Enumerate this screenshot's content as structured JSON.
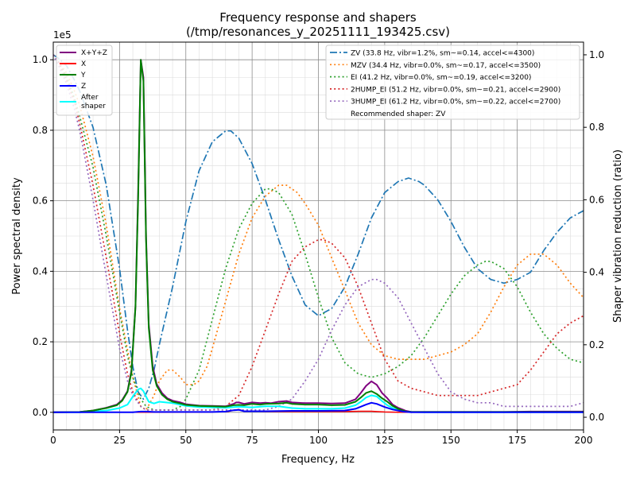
{
  "chart_data": {
    "type": "line",
    "title": "Frequency response and shapers",
    "subtitle": "(/tmp/resonances_y_20251111_193425.csv)",
    "xlabel": "Frequency, Hz",
    "ylabel": "Power spectral density",
    "y2label": "Shaper vibration reduction (ratio)",
    "y_multiplier": "1e5",
    "xlim": [
      0,
      200
    ],
    "ylim": [
      -0.05,
      1.05
    ],
    "y2lim": [
      -0.035,
      1.035
    ],
    "grid": true,
    "xticks": [
      0,
      25,
      50,
      75,
      100,
      125,
      150,
      175,
      200
    ],
    "yticks": [
      0.0,
      0.2,
      0.4,
      0.6,
      0.8,
      1.0
    ],
    "y2ticks": [
      0.0,
      0.2,
      0.4,
      0.6,
      0.8,
      1.0
    ],
    "xtick_labels": [
      "0",
      "25",
      "50",
      "75",
      "100",
      "125",
      "150",
      "175",
      "200"
    ],
    "ytick_labels": [
      "0.0",
      "0.2",
      "0.4",
      "0.6",
      "0.8",
      "1.0"
    ],
    "y2tick_labels": [
      "0.0",
      "0.2",
      "0.4",
      "0.6",
      "0.8",
      "1.0"
    ],
    "left_legend": {
      "placement": "top-left",
      "entries": [
        {
          "label": "X+Y+Z",
          "color": "#800080",
          "style": "solid"
        },
        {
          "label": "X",
          "color": "#ff0000",
          "style": "solid"
        },
        {
          "label": "Y",
          "color": "#008000",
          "style": "solid"
        },
        {
          "label": "Z",
          "color": "#0000ff",
          "style": "solid"
        },
        {
          "label": "After\nshaper",
          "color": "#00ffff",
          "style": "solid"
        }
      ]
    },
    "right_legend": {
      "placement": "top-right",
      "entries": [
        {
          "label": "ZV (33.8 Hz, vibr=1.2%, sm~=0.14, accel<=4300)",
          "color": "#1f77b4",
          "style": "dashdot"
        },
        {
          "label": "MZV (34.4 Hz, vibr=0.0%, sm~=0.17, accel<=3500)",
          "color": "#ff7f0e",
          "style": "dotted"
        },
        {
          "label": "EI (41.2 Hz, vibr=0.0%, sm~=0.19, accel<=3200)",
          "color": "#2ca02c",
          "style": "dotted"
        },
        {
          "label": "2HUMP_EI (51.2 Hz, vibr=0.0%, sm~=0.21, accel<=2900)",
          "color": "#d62728",
          "style": "dotted"
        },
        {
          "label": "3HUMP_EI (61.2 Hz, vibr=0.0%, sm~=0.22, accel<=2700)",
          "color": "#9467bd",
          "style": "dotted"
        }
      ],
      "note": "Recommended shaper: ZV"
    },
    "psd_series": [
      {
        "name": "X+Y+Z",
        "color": "#800080",
        "width": 2,
        "x": [
          0,
          10,
          15,
          20,
          24,
          26,
          28,
          29.5,
          31,
          32,
          33,
          34,
          35,
          36,
          37.5,
          39,
          41,
          43,
          45,
          48,
          50,
          55,
          60,
          65,
          68,
          69,
          70,
          72,
          75,
          78,
          80,
          82,
          85,
          88,
          90,
          95,
          100,
          105,
          110,
          114,
          116,
          118,
          120,
          122,
          124,
          126,
          128,
          130,
          133,
          135,
          140,
          150,
          160,
          170,
          180,
          190,
          200
        ],
        "y": [
          0,
          0.001,
          0.005,
          0.013,
          0.022,
          0.035,
          0.06,
          0.12,
          0.3,
          0.62,
          1.0,
          0.95,
          0.5,
          0.25,
          0.13,
          0.08,
          0.055,
          0.04,
          0.033,
          0.028,
          0.023,
          0.019,
          0.018,
          0.017,
          0.024,
          0.028,
          0.028,
          0.024,
          0.028,
          0.026,
          0.027,
          0.026,
          0.03,
          0.032,
          0.028,
          0.026,
          0.026,
          0.025,
          0.026,
          0.037,
          0.055,
          0.075,
          0.088,
          0.078,
          0.055,
          0.04,
          0.022,
          0.013,
          0.004,
          0.001,
          0.001,
          0.001,
          0.001,
          0.001,
          0.002,
          0.002,
          0.002
        ]
      },
      {
        "name": "X",
        "color": "#ff0000",
        "width": 1.5,
        "x": [
          0,
          40,
          60,
          66,
          68,
          70,
          72,
          80,
          90,
          100,
          110,
          116,
          118,
          120,
          122,
          125,
          130,
          140,
          200
        ],
        "y": [
          0,
          0,
          0.001,
          0.002,
          0.006,
          0.008,
          0.003,
          0.002,
          0.002,
          0.002,
          0.002,
          0.003,
          0.003,
          0.003,
          0.002,
          0.001,
          0.0,
          0.0,
          0.0
        ]
      },
      {
        "name": "Y",
        "color": "#008000",
        "width": 2,
        "x": [
          0,
          10,
          15,
          20,
          24,
          26,
          28,
          29.5,
          31,
          32,
          33,
          34,
          35,
          36,
          37.5,
          39,
          41,
          43,
          45,
          48,
          50,
          55,
          60,
          65,
          68,
          70,
          72,
          75,
          78,
          80,
          85,
          88,
          90,
          95,
          100,
          105,
          110,
          114,
          116,
          118,
          120,
          122,
          124,
          126,
          128,
          130,
          133,
          135,
          140,
          200
        ],
        "y": [
          0,
          0.001,
          0.005,
          0.012,
          0.02,
          0.033,
          0.058,
          0.115,
          0.3,
          0.6,
          1.0,
          0.94,
          0.49,
          0.24,
          0.12,
          0.075,
          0.05,
          0.037,
          0.03,
          0.025,
          0.021,
          0.018,
          0.017,
          0.016,
          0.02,
          0.021,
          0.02,
          0.024,
          0.022,
          0.024,
          0.025,
          0.027,
          0.024,
          0.022,
          0.022,
          0.02,
          0.021,
          0.03,
          0.042,
          0.055,
          0.06,
          0.052,
          0.04,
          0.03,
          0.018,
          0.01,
          0.002,
          0.001,
          0.001,
          0.001
        ]
      },
      {
        "name": "Z",
        "color": "#0000ff",
        "width": 2,
        "x": [
          0,
          20,
          30,
          33,
          35,
          38,
          45,
          60,
          65,
          68,
          70,
          72,
          75,
          80,
          90,
          100,
          110,
          114,
          118,
          120,
          122,
          125,
          128,
          132,
          135,
          140,
          200
        ],
        "y": [
          0,
          0,
          0.0,
          0.002,
          0.002,
          0.001,
          0.001,
          0.001,
          0.002,
          0.006,
          0.007,
          0.003,
          0.003,
          0.003,
          0.004,
          0.004,
          0.005,
          0.01,
          0.022,
          0.027,
          0.024,
          0.015,
          0.008,
          0.002,
          0.0,
          0.0,
          0.0
        ]
      },
      {
        "name": "After shaper",
        "color": "#00ffff",
        "width": 2,
        "x": [
          0,
          10,
          15,
          20,
          25,
          28,
          30,
          32,
          33,
          34,
          35,
          36,
          38,
          40,
          45,
          50,
          55,
          60,
          65,
          70,
          75,
          80,
          85,
          90,
          95,
          100,
          105,
          110,
          114,
          116,
          118,
          120,
          122,
          124,
          126,
          128,
          130,
          135,
          140,
          200
        ],
        "y": [
          0,
          0.0,
          0.002,
          0.005,
          0.012,
          0.022,
          0.045,
          0.065,
          0.068,
          0.06,
          0.045,
          0.03,
          0.025,
          0.03,
          0.026,
          0.018,
          0.015,
          0.014,
          0.013,
          0.016,
          0.014,
          0.017,
          0.017,
          0.012,
          0.01,
          0.01,
          0.01,
          0.012,
          0.02,
          0.03,
          0.042,
          0.048,
          0.045,
          0.032,
          0.02,
          0.012,
          0.006,
          0.001,
          0.0,
          0.0
        ]
      }
    ],
    "shaper_series": [
      {
        "name": "ZV",
        "color": "#1f77b4",
        "style": "dashdot",
        "x": [
          0,
          2,
          5,
          8,
          10,
          15,
          20,
          25,
          28,
          30,
          32,
          34,
          36,
          38,
          40,
          45,
          50,
          55,
          60,
          65,
          67,
          70,
          75,
          80,
          85,
          90,
          95,
          100,
          105,
          110,
          115,
          120,
          125,
          130,
          134,
          138,
          140,
          145,
          150,
          155,
          160,
          165,
          170,
          175,
          180,
          185,
          190,
          195,
          200
        ],
        "y": [
          1.0,
          0.99,
          0.97,
          0.93,
          0.9,
          0.8,
          0.64,
          0.41,
          0.24,
          0.14,
          0.07,
          0.05,
          0.08,
          0.13,
          0.2,
          0.36,
          0.54,
          0.68,
          0.76,
          0.79,
          0.79,
          0.77,
          0.7,
          0.6,
          0.49,
          0.39,
          0.31,
          0.28,
          0.3,
          0.36,
          0.45,
          0.55,
          0.62,
          0.65,
          0.66,
          0.65,
          0.64,
          0.6,
          0.54,
          0.47,
          0.41,
          0.38,
          0.37,
          0.38,
          0.4,
          0.46,
          0.51,
          0.55,
          0.57
        ]
      },
      {
        "name": "MZV",
        "color": "#ff7f0e",
        "style": "dotted",
        "x": [
          0,
          2,
          5,
          8,
          10,
          15,
          20,
          25,
          30,
          33,
          35,
          38,
          40,
          43,
          45,
          48,
          50,
          53,
          55,
          58,
          60,
          65,
          70,
          75,
          80,
          85,
          88,
          90,
          92,
          95,
          100,
          105,
          110,
          115,
          120,
          125,
          130,
          135,
          140,
          145,
          150,
          155,
          160,
          165,
          170,
          175,
          180,
          185,
          190,
          195,
          200
        ],
        "y": [
          1.0,
          0.98,
          0.95,
          0.9,
          0.86,
          0.72,
          0.53,
          0.3,
          0.11,
          0.03,
          0.02,
          0.06,
          0.1,
          0.13,
          0.13,
          0.11,
          0.09,
          0.09,
          0.1,
          0.14,
          0.19,
          0.32,
          0.45,
          0.55,
          0.61,
          0.64,
          0.64,
          0.63,
          0.62,
          0.59,
          0.53,
          0.44,
          0.35,
          0.26,
          0.2,
          0.17,
          0.16,
          0.16,
          0.16,
          0.17,
          0.18,
          0.2,
          0.23,
          0.29,
          0.36,
          0.42,
          0.45,
          0.45,
          0.42,
          0.37,
          0.33
        ]
      },
      {
        "name": "EI",
        "color": "#2ca02c",
        "style": "dotted",
        "x": [
          0,
          2,
          5,
          8,
          10,
          15,
          20,
          25,
          28,
          30,
          33,
          35,
          38,
          40,
          42,
          45,
          48,
          50,
          55,
          60,
          65,
          70,
          75,
          80,
          82,
          85,
          90,
          95,
          100,
          105,
          110,
          115,
          120,
          125,
          130,
          135,
          140,
          145,
          150,
          155,
          160,
          163,
          165,
          170,
          175,
          180,
          185,
          190,
          195,
          200
        ],
        "y": [
          1.0,
          0.98,
          0.94,
          0.88,
          0.83,
          0.69,
          0.5,
          0.29,
          0.17,
          0.11,
          0.05,
          0.03,
          0.02,
          0.02,
          0.02,
          0.02,
          0.03,
          0.05,
          0.13,
          0.27,
          0.41,
          0.52,
          0.59,
          0.63,
          0.63,
          0.62,
          0.56,
          0.45,
          0.33,
          0.22,
          0.15,
          0.12,
          0.11,
          0.12,
          0.14,
          0.17,
          0.22,
          0.28,
          0.34,
          0.39,
          0.42,
          0.43,
          0.43,
          0.41,
          0.36,
          0.29,
          0.23,
          0.19,
          0.16,
          0.15
        ]
      },
      {
        "name": "2HUMP_EI",
        "color": "#d62728",
        "style": "dotted",
        "x": [
          0,
          2,
          5,
          8,
          10,
          15,
          20,
          25,
          28,
          30,
          33,
          35,
          40,
          45,
          50,
          55,
          60,
          65,
          70,
          75,
          80,
          85,
          90,
          95,
          100,
          102,
          105,
          110,
          115,
          120,
          125,
          130,
          135,
          140,
          145,
          150,
          155,
          160,
          165,
          170,
          175,
          180,
          185,
          190,
          195,
          200
        ],
        "y": [
          1.0,
          0.98,
          0.93,
          0.87,
          0.81,
          0.64,
          0.44,
          0.23,
          0.12,
          0.07,
          0.03,
          0.02,
          0.02,
          0.02,
          0.02,
          0.02,
          0.02,
          0.03,
          0.06,
          0.14,
          0.24,
          0.34,
          0.43,
          0.47,
          0.49,
          0.49,
          0.48,
          0.44,
          0.36,
          0.26,
          0.16,
          0.1,
          0.08,
          0.07,
          0.06,
          0.06,
          0.06,
          0.06,
          0.07,
          0.08,
          0.09,
          0.13,
          0.18,
          0.23,
          0.26,
          0.28
        ]
      },
      {
        "name": "3HUMP_EI",
        "color": "#9467bd",
        "style": "dotted",
        "x": [
          0,
          2,
          5,
          8,
          10,
          15,
          20,
          25,
          28,
          30,
          33,
          35,
          40,
          45,
          50,
          55,
          60,
          65,
          70,
          75,
          80,
          85,
          90,
          95,
          100,
          105,
          110,
          115,
          120,
          122,
          125,
          130,
          135,
          140,
          145,
          150,
          155,
          160,
          165,
          170,
          175,
          180,
          185,
          190,
          195,
          200
        ],
        "y": [
          1.0,
          0.97,
          0.92,
          0.85,
          0.79,
          0.6,
          0.39,
          0.19,
          0.1,
          0.06,
          0.03,
          0.02,
          0.02,
          0.02,
          0.02,
          0.02,
          0.02,
          0.02,
          0.02,
          0.02,
          0.02,
          0.03,
          0.05,
          0.1,
          0.16,
          0.24,
          0.31,
          0.36,
          0.38,
          0.38,
          0.37,
          0.33,
          0.26,
          0.19,
          0.12,
          0.07,
          0.05,
          0.04,
          0.04,
          0.03,
          0.03,
          0.03,
          0.03,
          0.03,
          0.03,
          0.04
        ]
      }
    ]
  }
}
